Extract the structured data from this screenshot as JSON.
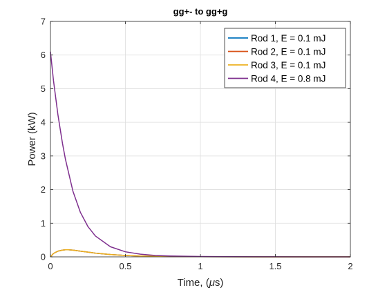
{
  "chart_data": {
    "type": "line",
    "title": "gg+- to gg+g",
    "xlabel_prefix": "Time, (",
    "xlabel_symbol": "μ",
    "xlabel_suffix": "s)",
    "ylabel": "Power (kW)",
    "xlim": [
      0,
      2
    ],
    "ylim": [
      0,
      7
    ],
    "xticks": [
      0,
      0.5,
      1,
      1.5,
      2
    ],
    "xtick_labels": [
      "0",
      "0.5",
      "1",
      "1.5",
      "2"
    ],
    "yticks": [
      0,
      1,
      2,
      3,
      4,
      5,
      6,
      7
    ],
    "ytick_labels": [
      "0",
      "1",
      "2",
      "3",
      "4",
      "5",
      "6",
      "7"
    ],
    "grid": true,
    "legend_position": "top-right",
    "series": [
      {
        "name": "Rod 1, E = 0.1 mJ",
        "color": "#0072BD",
        "x": [
          0,
          0.02,
          0.05,
          0.08,
          0.1,
          0.12,
          0.15,
          0.2,
          0.25,
          0.3,
          0.4,
          0.5,
          0.6,
          0.8,
          1.0,
          1.2,
          1.5,
          2.0
        ],
        "y": [
          0,
          0.1,
          0.17,
          0.2,
          0.21,
          0.21,
          0.2,
          0.17,
          0.14,
          0.11,
          0.07,
          0.04,
          0.025,
          0.01,
          0.004,
          0.002,
          0.0005,
          0
        ]
      },
      {
        "name": "Rod 2, E = 0.1 mJ",
        "color": "#D95319",
        "x": [
          0,
          0.02,
          0.05,
          0.08,
          0.1,
          0.12,
          0.15,
          0.2,
          0.25,
          0.3,
          0.4,
          0.5,
          0.6,
          0.8,
          1.0,
          1.2,
          1.5,
          2.0
        ],
        "y": [
          0,
          0.1,
          0.17,
          0.2,
          0.21,
          0.21,
          0.2,
          0.17,
          0.14,
          0.11,
          0.07,
          0.04,
          0.025,
          0.01,
          0.004,
          0.002,
          0.0005,
          0
        ]
      },
      {
        "name": "Rod 3, E = 0.1 mJ",
        "color": "#EDB120",
        "x": [
          0,
          0.02,
          0.05,
          0.08,
          0.1,
          0.12,
          0.15,
          0.2,
          0.25,
          0.3,
          0.4,
          0.5,
          0.6,
          0.8,
          1.0,
          1.2,
          1.5,
          2.0
        ],
        "y": [
          0,
          0.1,
          0.17,
          0.2,
          0.21,
          0.21,
          0.2,
          0.17,
          0.14,
          0.11,
          0.07,
          0.04,
          0.025,
          0.01,
          0.004,
          0.002,
          0.0005,
          0
        ]
      },
      {
        "name": "Rod 4, E = 0.8 mJ",
        "color": "#7E2F8E",
        "x": [
          0,
          0.02,
          0.05,
          0.08,
          0.1,
          0.15,
          0.2,
          0.25,
          0.3,
          0.4,
          0.5,
          0.6,
          0.7,
          0.8,
          1.0,
          1.2,
          1.5,
          1.75,
          2.0
        ],
        "y": [
          6.1,
          5.25,
          4.22,
          3.38,
          2.9,
          1.95,
          1.32,
          0.9,
          0.62,
          0.3,
          0.15,
          0.08,
          0.04,
          0.025,
          0.01,
          0.005,
          0.002,
          0.001,
          0
        ]
      }
    ]
  }
}
